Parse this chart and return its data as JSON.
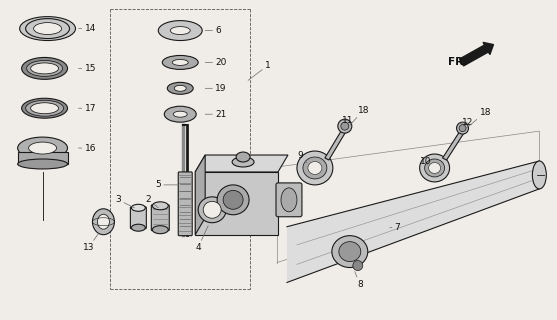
{
  "bg_color": "#f0ede8",
  "line_color": "#1a1a1a",
  "text_color": "#111111",
  "fig_width": 5.57,
  "fig_height": 3.2,
  "dpi": 100
}
